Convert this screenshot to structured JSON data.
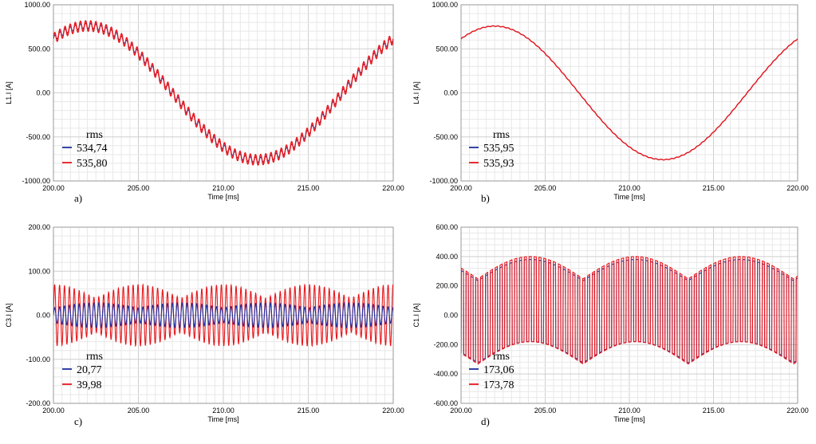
{
  "chart_data": [
    {
      "type": "line",
      "panel_label": "a)",
      "xlabel": "Time [ms]",
      "ylabel": "L1.I [A]",
      "xlim": [
        200,
        220
      ],
      "ylim": [
        -1000,
        1000
      ],
      "xticks": [
        "200.00",
        "205.00",
        "210.00",
        "215.00",
        "220.00"
      ],
      "yticks": [
        "1000.00",
        "500.00",
        "0.00",
        "-500.00",
        "-1000.00"
      ],
      "grid": true,
      "legend": {
        "title": "rms",
        "placement": "bottom-left",
        "entries": [
          "534,74",
          "535,80"
        ]
      },
      "series": [
        {
          "color": "#1f2fa0",
          "rms": 534.74,
          "shape": "sine",
          "amplitude": 760,
          "ripple": 30,
          "ripple_freq": 3.3
        },
        {
          "color": "#e8161b",
          "rms": 535.8,
          "shape": "sine",
          "amplitude": 760,
          "ripple": 60,
          "ripple_freq": 3.3
        }
      ]
    },
    {
      "type": "line",
      "panel_label": "b)",
      "xlabel": "Time [ms]",
      "ylabel": "L4.I [A]",
      "xlim": [
        200,
        220
      ],
      "ylim": [
        -1000,
        1000
      ],
      "xticks": [
        "200.00",
        "205.00",
        "210.00",
        "215.00",
        "220.00"
      ],
      "yticks": [
        "1000.00",
        "500.00",
        "0.00",
        "-500.00",
        "-1000.00"
      ],
      "grid": true,
      "legend": {
        "title": "rms",
        "placement": "bottom-left",
        "entries": [
          "535,95",
          "535,93"
        ]
      },
      "series": [
        {
          "color": "#1f2fa0",
          "rms": 535.95,
          "shape": "sine",
          "amplitude": 758,
          "ripple": 3,
          "ripple_freq": 3.3
        },
        {
          "color": "#e8161b",
          "rms": 535.93,
          "shape": "sine",
          "amplitude": 758,
          "ripple": 4,
          "ripple_freq": 3.3
        }
      ]
    },
    {
      "type": "line",
      "panel_label": "c)",
      "xlabel": "Time [ms]",
      "ylabel": "C3.I [A]",
      "xlim": [
        200,
        220
      ],
      "ylim": [
        -200,
        200
      ],
      "xticks": [
        "200.00",
        "205.00",
        "210.00",
        "215.00",
        "220.00"
      ],
      "yticks": [
        "200.00",
        "100.00",
        "0.00",
        "-100.00",
        "-200.00"
      ],
      "grid": true,
      "legend": {
        "title": "rms",
        "placement": "bottom-left",
        "entries": [
          "20,77",
          "39,98"
        ]
      },
      "series": [
        {
          "color": "#e8161b",
          "rms": 39.98,
          "shape": "ripple",
          "amplitude": 70,
          "ripple_freq": 3.3
        },
        {
          "color": "#1f2fa0",
          "rms": 20.77,
          "shape": "ripple",
          "amplitude": 28,
          "ripple_freq": 3.3
        }
      ]
    },
    {
      "type": "line",
      "panel_label": "d)",
      "xlabel": "Time [ms]",
      "ylabel": "C1.I [A]",
      "xlim": [
        200,
        220
      ],
      "ylim": [
        -600,
        600
      ],
      "xticks": [
        "200.00",
        "205.00",
        "210.00",
        "215.00",
        "220.00"
      ],
      "yticks": [
        "600.00",
        "400.00",
        "200.00",
        "0.00",
        "-200.00",
        "-400.00",
        "-600.00"
      ],
      "grid": true,
      "legend": {
        "title": "rms",
        "placement": "bottom-left",
        "entries": [
          "173,06",
          "173,78"
        ]
      },
      "series": [
        {
          "color": "#1f2fa0",
          "rms": 173.06,
          "shape": "pulse",
          "amplitude": 380,
          "ripple_freq": 3.3
        },
        {
          "color": "#e8161b",
          "rms": 173.78,
          "shape": "pulse",
          "amplitude": 400,
          "ripple_freq": 3.3
        }
      ]
    }
  ]
}
